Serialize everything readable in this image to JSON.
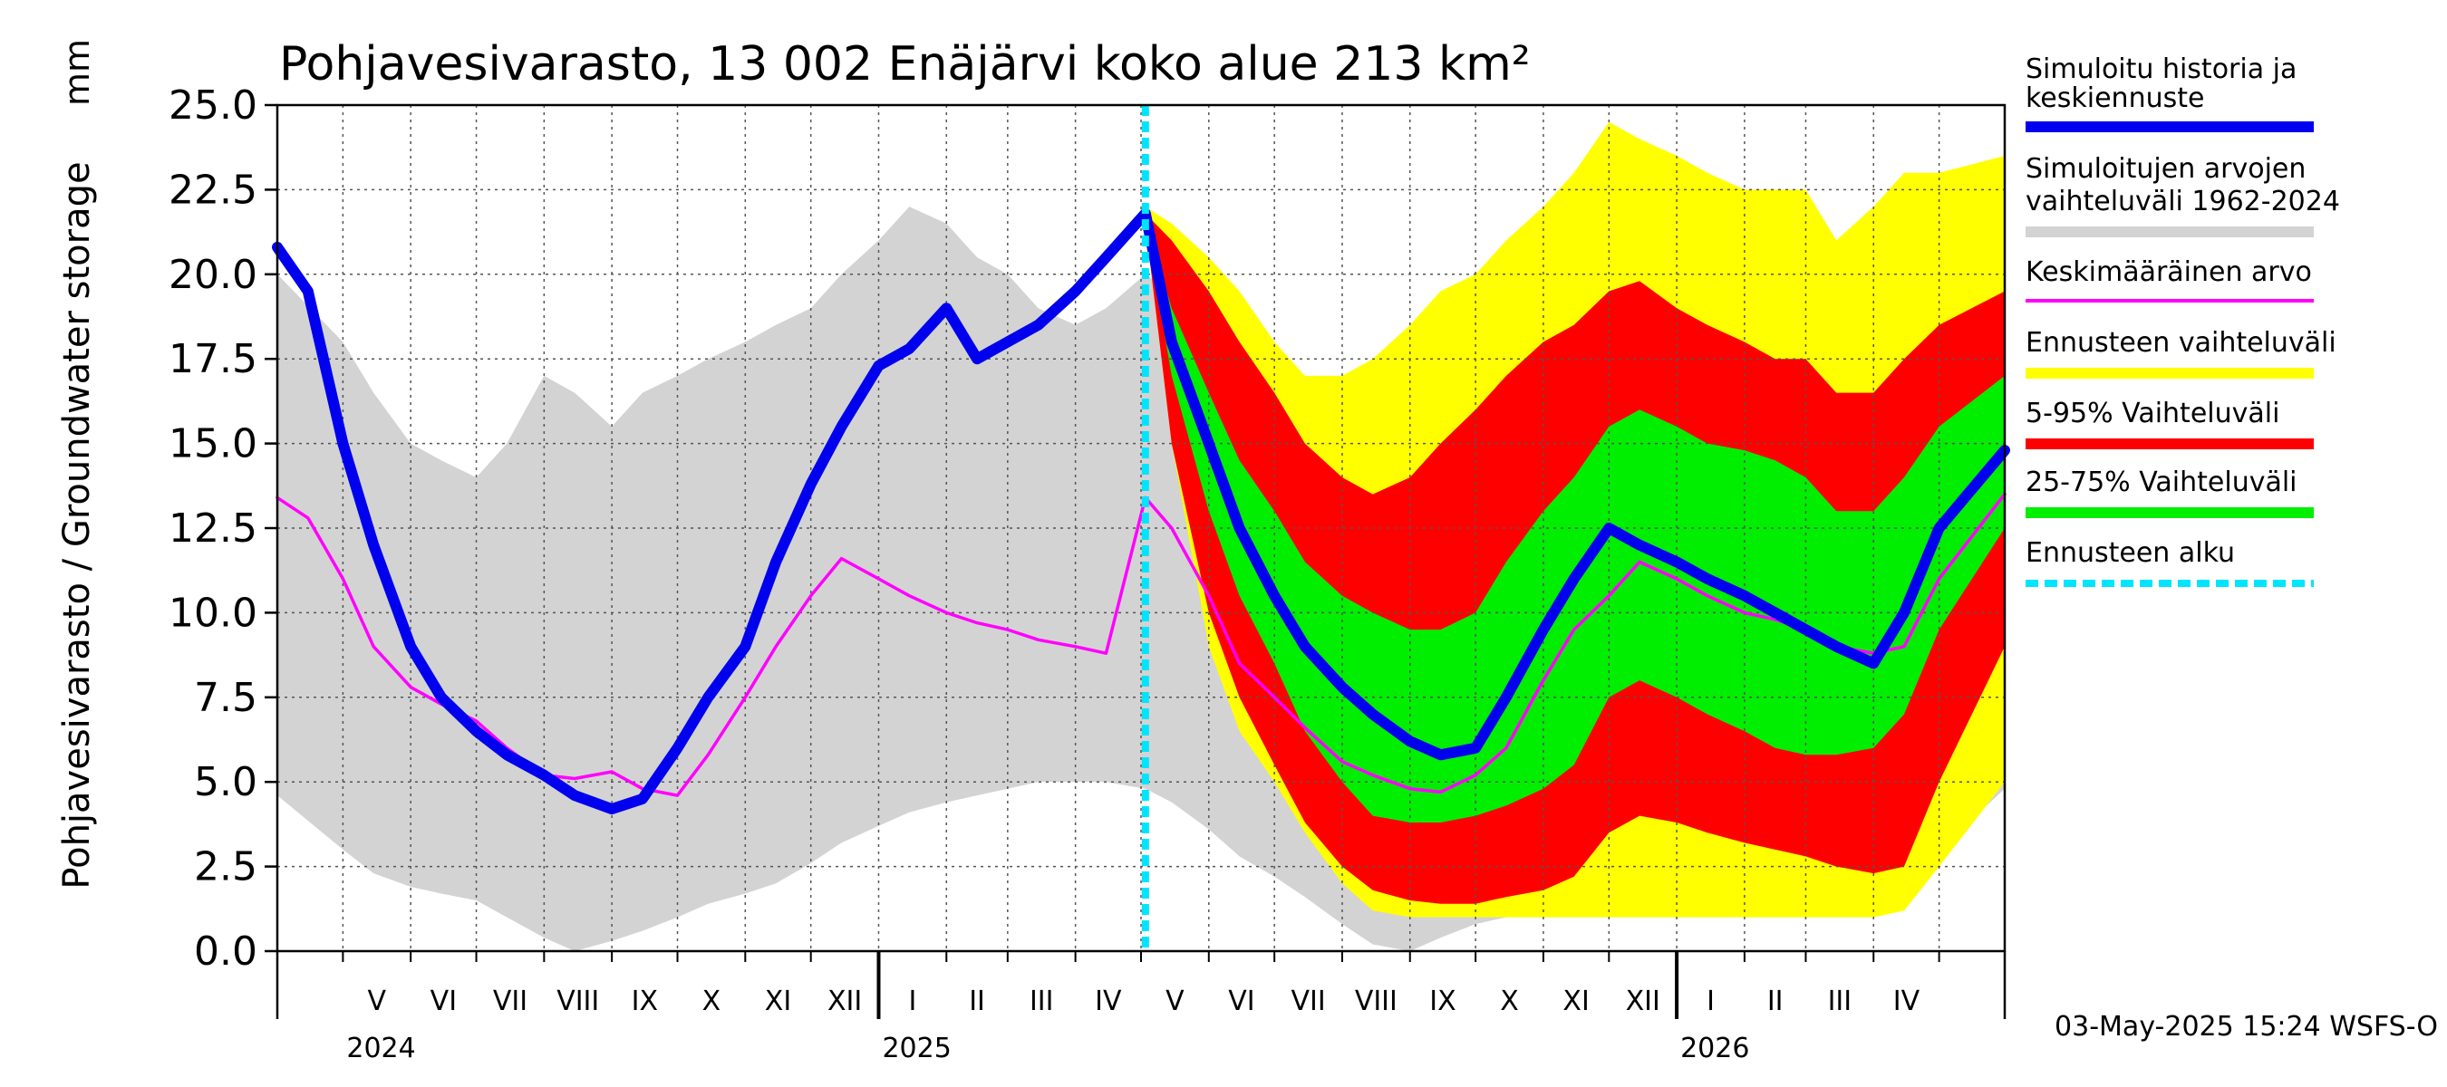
{
  "chart_data": {
    "type": "area",
    "title": "Pohjavesivarasto, 13 002 Enäjärvi koko alue 213 km²",
    "ylabel": "Pohjavesivarasto / Groundwater storage",
    "unit": "mm",
    "ylim": [
      0,
      25
    ],
    "yticks": [
      "0.0",
      "2.5",
      "5.0",
      "7.5",
      "10.0",
      "12.5",
      "15.0",
      "17.5",
      "20.0",
      "22.5",
      "25.0"
    ],
    "x_range": [
      "2024-04-01",
      "2026-05-31"
    ],
    "forecast_start": "2025-05-03",
    "grid": true,
    "months": [
      {
        "label": "V",
        "date": "2024-05-01"
      },
      {
        "label": "VI",
        "date": "2024-06-01"
      },
      {
        "label": "VII",
        "date": "2024-07-01"
      },
      {
        "label": "VIII",
        "date": "2024-08-01"
      },
      {
        "label": "IX",
        "date": "2024-09-01"
      },
      {
        "label": "X",
        "date": "2024-10-01"
      },
      {
        "label": "XI",
        "date": "2024-11-01"
      },
      {
        "label": "XII",
        "date": "2024-12-01"
      },
      {
        "label": "I",
        "date": "2025-01-01"
      },
      {
        "label": "II",
        "date": "2025-02-01"
      },
      {
        "label": "III",
        "date": "2025-03-01"
      },
      {
        "label": "IV",
        "date": "2025-04-01"
      },
      {
        "label": "V",
        "date": "2025-05-01"
      },
      {
        "label": "VI",
        "date": "2025-06-01"
      },
      {
        "label": "VII",
        "date": "2025-07-01"
      },
      {
        "label": "VIII",
        "date": "2025-08-01"
      },
      {
        "label": "IX",
        "date": "2025-09-01"
      },
      {
        "label": "X",
        "date": "2025-10-01"
      },
      {
        "label": "XI",
        "date": "2025-11-01"
      },
      {
        "label": "XII",
        "date": "2025-12-01"
      },
      {
        "label": "I",
        "date": "2026-01-01"
      },
      {
        "label": "II",
        "date": "2026-02-01"
      },
      {
        "label": "III",
        "date": "2026-03-01"
      },
      {
        "label": "IV",
        "date": "2026-04-01"
      },
      {
        "label": "",
        "date": "2026-05-01"
      }
    ],
    "years": [
      {
        "label": "2024",
        "date": "2024-05-01"
      },
      {
        "label": "2025",
        "date": "2025-01-01"
      },
      {
        "label": "2026",
        "date": "2026-01-01"
      }
    ],
    "series": [
      {
        "name": "Simuloitujen arvojen vaihteluväli 1962-2024",
        "kind": "band",
        "color": "#d3d3d3",
        "x": [
          "2024-04-01",
          "2024-05-01",
          "2024-05-15",
          "2024-06-01",
          "2024-06-15",
          "2024-07-01",
          "2024-07-15",
          "2024-08-01",
          "2024-08-15",
          "2024-09-01",
          "2024-09-15",
          "2024-10-01",
          "2024-10-15",
          "2024-11-01",
          "2024-11-15",
          "2024-12-01",
          "2024-12-15",
          "2025-01-01",
          "2025-01-15",
          "2025-02-01",
          "2025-02-15",
          "2025-03-01",
          "2025-03-15",
          "2025-04-01",
          "2025-04-15",
          "2025-05-03",
          "2025-05-15",
          "2025-06-01",
          "2025-06-15",
          "2025-07-01",
          "2025-07-15",
          "2025-08-01",
          "2025-08-15",
          "2025-09-01",
          "2025-09-15",
          "2025-10-01",
          "2025-10-15",
          "2025-11-01",
          "2025-11-15",
          "2025-12-01",
          "2025-12-15",
          "2026-01-01",
          "2026-01-15",
          "2026-02-01",
          "2026-02-15",
          "2026-03-01",
          "2026-03-15",
          "2026-04-01",
          "2026-04-15",
          "2026-05-01",
          "2026-05-31"
        ],
        "low": [
          4.6,
          3.0,
          2.3,
          1.9,
          1.7,
          1.5,
          1.0,
          0.4,
          0.0,
          0.3,
          0.6,
          1.0,
          1.4,
          1.7,
          2.0,
          2.6,
          3.2,
          3.7,
          4.1,
          4.4,
          4.6,
          4.8,
          5.0,
          5.0,
          5.0,
          4.8,
          4.4,
          3.6,
          2.8,
          2.2,
          1.6,
          0.8,
          0.2,
          0.0,
          0.4,
          0.8,
          1.0,
          1.0,
          1.0,
          1.0,
          1.0,
          1.0,
          1.0,
          1.0,
          1.0,
          1.0,
          1.0,
          1.0,
          1.5,
          3.0,
          4.8
        ],
        "high": [
          20.0,
          18.0,
          16.5,
          15.0,
          14.5,
          14.0,
          15.0,
          17.0,
          16.5,
          15.5,
          16.5,
          17.0,
          17.5,
          18.0,
          18.5,
          19.0,
          20.0,
          21.0,
          22.0,
          21.5,
          20.5,
          20.0,
          19.0,
          18.5,
          19.0,
          20.0,
          19.5,
          18.0,
          16.5,
          15.5,
          15.0,
          14.5,
          15.0,
          16.0,
          17.0,
          18.0,
          18.5,
          19.5,
          20.0,
          20.5,
          21.5,
          21.0,
          20.5,
          20.0,
          19.5,
          18.5,
          17.0,
          17.5,
          18.5,
          19.5,
          20.0
        ]
      },
      {
        "name": "Ennusteen vaihteluväli",
        "kind": "band",
        "color": "#ffff00",
        "x": [
          "2025-05-03",
          "2025-05-15",
          "2025-06-01",
          "2025-06-15",
          "2025-07-01",
          "2025-07-15",
          "2025-08-01",
          "2025-08-15",
          "2025-09-01",
          "2025-09-15",
          "2025-10-01",
          "2025-10-15",
          "2025-11-01",
          "2025-11-15",
          "2025-12-01",
          "2025-12-15",
          "2026-01-01",
          "2026-01-15",
          "2026-02-01",
          "2026-02-15",
          "2026-03-01",
          "2026-03-15",
          "2026-04-01",
          "2026-04-15",
          "2026-05-01",
          "2026-05-31"
        ],
        "low": [
          21.5,
          15.0,
          9.0,
          6.5,
          5.0,
          3.5,
          2.0,
          1.2,
          1.0,
          1.0,
          1.0,
          1.0,
          1.0,
          1.0,
          1.0,
          1.0,
          1.0,
          1.0,
          1.0,
          1.0,
          1.0,
          1.0,
          1.0,
          1.2,
          2.5,
          5.0
        ],
        "high": [
          22.0,
          21.5,
          20.5,
          19.5,
          18.0,
          17.0,
          17.0,
          17.5,
          18.5,
          19.5,
          20.0,
          21.0,
          22.0,
          23.0,
          24.5,
          24.0,
          23.5,
          23.0,
          22.5,
          22.5,
          22.5,
          21.0,
          22.0,
          23.0,
          23.0,
          23.5
        ]
      },
      {
        "name": "5-95% Vaihteluväli",
        "kind": "band",
        "color": "#ff0000",
        "x": [
          "2025-05-03",
          "2025-05-15",
          "2025-06-01",
          "2025-06-15",
          "2025-07-01",
          "2025-07-15",
          "2025-08-01",
          "2025-08-15",
          "2025-09-01",
          "2025-09-15",
          "2025-10-01",
          "2025-10-15",
          "2025-11-01",
          "2025-11-15",
          "2025-12-01",
          "2025-12-15",
          "2026-01-01",
          "2026-01-15",
          "2026-02-01",
          "2026-02-15",
          "2026-03-01",
          "2026-03-15",
          "2026-04-01",
          "2026-04-15",
          "2026-05-01",
          "2026-05-31"
        ],
        "low": [
          21.5,
          15.0,
          10.0,
          7.5,
          5.5,
          3.8,
          2.5,
          1.8,
          1.5,
          1.4,
          1.4,
          1.6,
          1.8,
          2.2,
          3.5,
          4.0,
          3.8,
          3.5,
          3.2,
          3.0,
          2.8,
          2.5,
          2.3,
          2.5,
          5.0,
          9.0
        ],
        "high": [
          21.8,
          21.0,
          19.5,
          18.0,
          16.5,
          15.0,
          14.0,
          13.5,
          14.0,
          15.0,
          16.0,
          17.0,
          18.0,
          18.5,
          19.5,
          19.8,
          19.0,
          18.5,
          18.0,
          17.5,
          17.5,
          16.5,
          16.5,
          17.5,
          18.5,
          19.5
        ]
      },
      {
        "name": "25-75% Vaihteluväli",
        "kind": "band",
        "color": "#00ee00",
        "x": [
          "2025-05-03",
          "2025-05-15",
          "2025-06-01",
          "2025-06-15",
          "2025-07-01",
          "2025-07-15",
          "2025-08-01",
          "2025-08-15",
          "2025-09-01",
          "2025-09-15",
          "2025-10-01",
          "2025-10-15",
          "2025-11-01",
          "2025-11-15",
          "2025-12-01",
          "2025-12-15",
          "2026-01-01",
          "2026-01-15",
          "2026-02-01",
          "2026-02-15",
          "2026-03-01",
          "2026-03-15",
          "2026-04-01",
          "2026-04-15",
          "2026-05-01",
          "2026-05-31"
        ],
        "low": [
          21.5,
          17.0,
          13.0,
          10.5,
          8.5,
          6.5,
          5.0,
          4.0,
          3.8,
          3.8,
          4.0,
          4.3,
          4.8,
          5.5,
          7.5,
          8.0,
          7.5,
          7.0,
          6.5,
          6.0,
          5.8,
          5.8,
          6.0,
          7.0,
          9.5,
          12.5
        ],
        "high": [
          21.7,
          19.0,
          16.5,
          14.5,
          13.0,
          11.5,
          10.5,
          10.0,
          9.5,
          9.5,
          10.0,
          11.5,
          13.0,
          14.0,
          15.5,
          16.0,
          15.5,
          15.0,
          14.8,
          14.5,
          14.0,
          13.0,
          13.0,
          14.0,
          15.5,
          17.0
        ]
      },
      {
        "name": "Keskimääräinen arvo",
        "kind": "line",
        "color": "#ff00ff",
        "x": [
          "2024-04-01",
          "2024-04-15",
          "2024-05-01",
          "2024-05-15",
          "2024-06-01",
          "2024-06-15",
          "2024-07-01",
          "2024-07-15",
          "2024-08-01",
          "2024-08-15",
          "2024-09-01",
          "2024-09-15",
          "2024-10-01",
          "2024-10-15",
          "2024-11-01",
          "2024-11-15",
          "2024-12-01",
          "2024-12-15",
          "2025-01-01",
          "2025-01-15",
          "2025-02-01",
          "2025-02-15",
          "2025-03-01",
          "2025-03-15",
          "2025-04-01",
          "2025-04-15",
          "2025-05-03",
          "2025-05-15",
          "2025-06-01",
          "2025-06-15",
          "2025-07-01",
          "2025-07-15",
          "2025-08-01",
          "2025-08-15",
          "2025-09-01",
          "2025-09-15",
          "2025-10-01",
          "2025-10-15",
          "2025-11-01",
          "2025-11-15",
          "2025-12-01",
          "2025-12-15",
          "2026-01-01",
          "2026-01-15",
          "2026-02-01",
          "2026-02-15",
          "2026-03-01",
          "2026-03-15",
          "2026-04-01",
          "2026-04-15",
          "2026-05-01",
          "2026-05-31"
        ],
        "y": [
          13.4,
          12.8,
          11.0,
          9.0,
          7.8,
          7.3,
          6.8,
          6.0,
          5.2,
          5.1,
          5.3,
          4.8,
          4.6,
          5.8,
          7.5,
          9.0,
          10.5,
          11.6,
          11.0,
          10.5,
          10.0,
          9.7,
          9.5,
          9.2,
          9.0,
          8.8,
          13.4,
          12.5,
          10.5,
          8.5,
          7.5,
          6.6,
          5.6,
          5.2,
          4.8,
          4.7,
          5.2,
          6.0,
          8.0,
          9.5,
          10.5,
          11.5,
          11.0,
          10.5,
          10.0,
          9.8,
          9.5,
          9.0,
          8.8,
          9.0,
          11.0,
          13.5
        ]
      },
      {
        "name": "Simuloitu historia ja keskiennuste",
        "kind": "line",
        "color": "#0000ee",
        "x": [
          "2024-04-01",
          "2024-04-15",
          "2024-05-01",
          "2024-05-15",
          "2024-06-01",
          "2024-06-15",
          "2024-07-01",
          "2024-07-15",
          "2024-08-01",
          "2024-08-15",
          "2024-09-01",
          "2024-09-15",
          "2024-10-01",
          "2024-10-15",
          "2024-11-01",
          "2024-11-15",
          "2024-12-01",
          "2024-12-15",
          "2025-01-01",
          "2025-01-15",
          "2025-02-01",
          "2025-02-15",
          "2025-03-01",
          "2025-03-15",
          "2025-04-01",
          "2025-04-15",
          "2025-05-03",
          "2025-05-15",
          "2025-06-01",
          "2025-06-15",
          "2025-07-01",
          "2025-07-15",
          "2025-08-01",
          "2025-08-15",
          "2025-09-01",
          "2025-09-15",
          "2025-10-01",
          "2025-10-15",
          "2025-11-01",
          "2025-11-15",
          "2025-12-01",
          "2025-12-15",
          "2026-01-01",
          "2026-01-15",
          "2026-02-01",
          "2026-02-15",
          "2026-03-01",
          "2026-03-15",
          "2026-04-01",
          "2026-04-15",
          "2026-05-01",
          "2026-05-31"
        ],
        "y": [
          20.8,
          19.5,
          15.0,
          12.0,
          9.0,
          7.5,
          6.5,
          5.8,
          5.2,
          4.6,
          4.2,
          4.5,
          6.0,
          7.5,
          9.0,
          11.5,
          13.8,
          15.5,
          17.3,
          17.8,
          19.0,
          17.5,
          18.0,
          18.5,
          19.5,
          20.5,
          21.8,
          18.0,
          15.0,
          12.5,
          10.5,
          9.0,
          7.8,
          7.0,
          6.2,
          5.8,
          6.0,
          7.5,
          9.5,
          11.0,
          12.5,
          12.0,
          11.5,
          11.0,
          10.5,
          10.0,
          9.5,
          9.0,
          8.5,
          10.0,
          12.5,
          14.8
        ]
      }
    ],
    "legend": [
      {
        "label": "Simuloitu historia ja keskiennuste",
        "color": "#0000ee",
        "style": "thick"
      },
      {
        "label": "Simuloitujen arvojen vaihteluväli 1962-2024",
        "color": "#d3d3d3",
        "style": "thick"
      },
      {
        "label": "Keskimääräinen arvo",
        "color": "#ff00ff",
        "style": "thin"
      },
      {
        "label": "Ennusteen vaihteluväli",
        "color": "#ffff00",
        "style": "thick"
      },
      {
        "label": "5-95% Vaihteluväli",
        "color": "#ff0000",
        "style": "thick"
      },
      {
        "label": "25-75% Vaihteluväli",
        "color": "#00ee00",
        "style": "thick"
      },
      {
        "label": "Ennusteen alku",
        "color": "#00e5ff",
        "style": "dashed"
      }
    ],
    "timestamp": "03-May-2025 15:24 WSFS-O"
  }
}
